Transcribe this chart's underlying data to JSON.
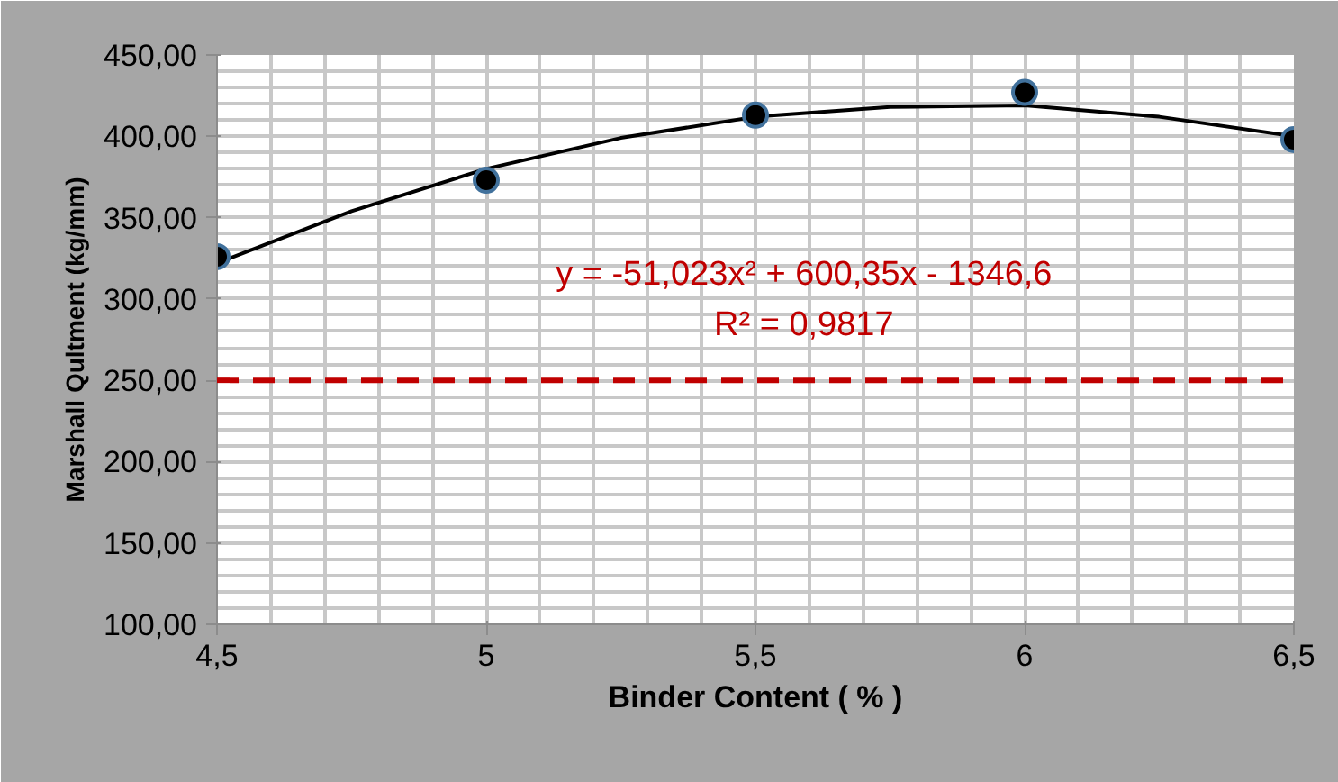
{
  "chart_data": {
    "type": "scatter",
    "xlabel": "Binder Content ( % )",
    "ylabel": "Marshall Qultment (kg/mm)",
    "series": [
      {
        "color": "#000000",
        "x": [
          4.5,
          5,
          5.5,
          6,
          6.5
        ],
        "values": [
          326,
          373,
          413,
          427,
          398
        ],
        "marker": "circle"
      },
      {
        "type": "line",
        "color": "#000000",
        "x": [
          4.5,
          4.75,
          5,
          5.25,
          5.5,
          5.75,
          6,
          6.25,
          6.5
        ],
        "values": [
          322,
          354,
          380,
          399,
          412,
          418,
          419,
          412,
          400
        ]
      }
    ],
    "xlim": [
      4.5,
      6.5
    ],
    "xticks": [
      {
        "value": 4.5,
        "label": "4,5"
      },
      5,
      {
        "value": 5.5,
        "label": "5,5"
      },
      6,
      {
        "value": 6.5,
        "label": "6,5"
      }
    ],
    "ylim": [
      100,
      450
    ],
    "yticks": [
      {
        "value": 100,
        "label": "100,00"
      },
      {
        "value": 150,
        "label": "150,00"
      },
      {
        "value": 200,
        "label": "200,00"
      },
      {
        "value": 250,
        "label": "250,00"
      },
      {
        "value": 300,
        "label": "300,00"
      },
      {
        "value": 350,
        "label": "350,00"
      },
      {
        "value": 400,
        "label": "400,00"
      },
      {
        "value": 450,
        "label": "450,00"
      }
    ],
    "ref_lines": [
      {
        "axis": "y",
        "value": 250,
        "label": null,
        "color": "#c00000",
        "line_style": "dashed"
      }
    ],
    "annotations": [
      "y = -51,023x² + 600,35x - 1346,6",
      "R² = 0,9817"
    ],
    "grid": true
  }
}
